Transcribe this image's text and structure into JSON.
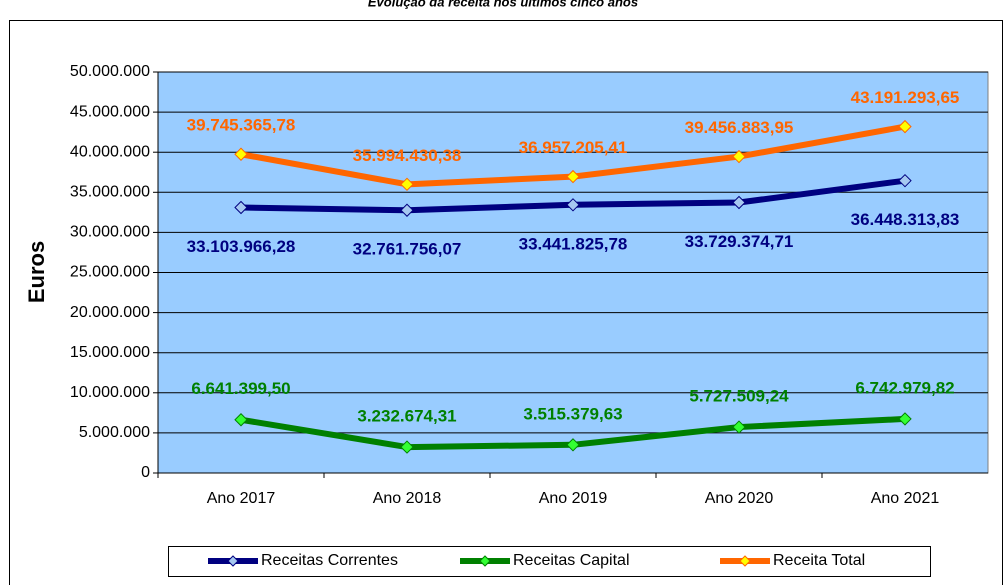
{
  "chart_data": {
    "type": "line",
    "title": "Evolução da receita nos últimos cinco anos",
    "y_label": "Euros",
    "categories": [
      "Ano 2017",
      "Ano 2018",
      "Ano 2019",
      "Ano 2020",
      "Ano 2021"
    ],
    "series": [
      {
        "name": "Receitas Correntes",
        "color": "#000080",
        "marker_color": "#a6c8f0",
        "values": [
          33103966.28,
          32761756.07,
          33441825.78,
          33729374.71,
          36448313.83
        ],
        "value_labels": [
          "33.103.966,28",
          "32.761.756,07",
          "33.441.825,78",
          "33.729.374,71",
          "36.448.313,83"
        ]
      },
      {
        "name": "Receitas Capital",
        "color": "#008000",
        "marker_color": "#33ff33",
        "values": [
          6641399.5,
          3232674.31,
          3515379.63,
          5727509.24,
          6742979.82
        ],
        "value_labels": [
          "6.641.399,50",
          "3.232.674,31",
          "3.515.379,63",
          "5.727.509,24",
          "6.742.979,82"
        ]
      },
      {
        "name": "Receita Total",
        "color": "#ff6600",
        "marker_color": "#ffff00",
        "values": [
          39745365.78,
          35994430.38,
          36957205.41,
          39456883.95,
          43191293.65
        ],
        "value_labels": [
          "39.745.365,78",
          "35.994.430,38",
          "36.957.205,41",
          "39.456.883,95",
          "43.191.293,65"
        ]
      }
    ],
    "ylim": [
      0,
      50000000
    ],
    "yticks": [
      0,
      {
        "value": 5000000,
        "label": "5.000.000"
      },
      {
        "value": 10000000,
        "label": "10.000.000"
      },
      {
        "value": 15000000,
        "label": "15.000.000"
      },
      {
        "value": 20000000,
        "label": "20.000.000"
      },
      {
        "value": 25000000,
        "label": "25.000.000"
      },
      {
        "value": 30000000,
        "label": "30.000.000"
      },
      {
        "value": 35000000,
        "label": "35.000.000"
      },
      {
        "value": 40000000,
        "label": "40.000.000"
      },
      {
        "value": 45000000,
        "label": "45.000.000"
      },
      {
        "value": 50000000,
        "label": "50.000.000"
      }
    ],
    "grid": true,
    "plot_background": "#99ccff",
    "legend": "bottom"
  }
}
